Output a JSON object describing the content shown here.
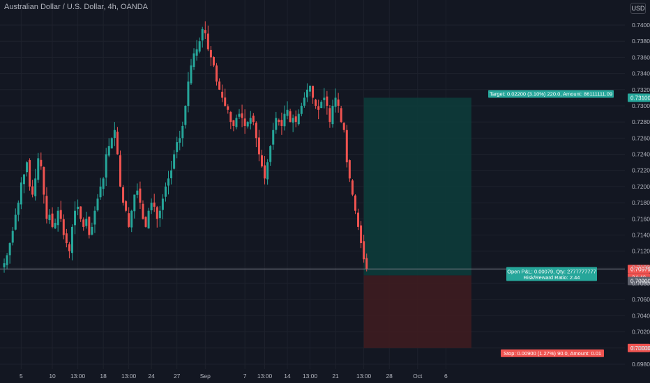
{
  "header": {
    "title": "Australian Dollar / U.S. Dollar, 4h, OANDA",
    "currency": "USD"
  },
  "colors": {
    "background": "#131722",
    "up": "#26a69a",
    "down": "#ef5350",
    "grid": "#1e222d",
    "axis_text": "#b2b5be",
    "target_zone": "#0d3b3a",
    "stop_zone": "#3e1c20"
  },
  "chart_data": {
    "type": "candlestick",
    "title": "Australian Dollar / U.S. Dollar, 4h, OANDA",
    "ylim": [
      0.697,
      0.742
    ],
    "y_ticks": [
      "0.74000",
      "0.73800",
      "0.73600",
      "0.73400",
      "0.73200",
      "0.73000",
      "0.72800",
      "0.72600",
      "0.72400",
      "0.72200",
      "0.72000",
      "0.71800",
      "0.71600",
      "0.71400",
      "0.71200",
      "0.71000",
      "0.70800",
      "0.70600",
      "0.70400",
      "0.70200",
      "0.70000",
      "0.69800"
    ],
    "y_tick_values": [
      0.74,
      0.738,
      0.736,
      0.734,
      0.732,
      0.73,
      0.728,
      0.726,
      0.724,
      0.722,
      0.72,
      0.718,
      0.716,
      0.714,
      0.712,
      0.71,
      0.708,
      0.706,
      0.704,
      0.702,
      0.7,
      0.698
    ],
    "x_ticks": [
      "5",
      "10",
      "13:00",
      "18",
      "13:00",
      "24",
      "27",
      "Sep",
      "7",
      "13:00",
      "14",
      "13:00",
      "21",
      "13:00",
      "28",
      "Oct",
      "6"
    ],
    "x_tick_bar_index": [
      6,
      17,
      26,
      35,
      44,
      52,
      61,
      71,
      85,
      92,
      100,
      108,
      117,
      127,
      136,
      146,
      156
    ],
    "total_bars": 170,
    "current_price": "0.70979",
    "countdown": "34:40",
    "position": {
      "type": "long",
      "entry_bar": 127,
      "end_bar": 165,
      "target_price": 0.731,
      "entry_price": 0.709,
      "stop_price": 0.7,
      "target_label": "0.73100",
      "entry_label": "0.70900",
      "stop_label": "0.70000",
      "target_text": "Target: 0.02200 (3.10%) 220.0, Amount: 86111111.09",
      "info_line1": "Open P&L: 0.00079, Qty: 2777777777",
      "info_line2": "Risk/Reward Ratio: 2.44",
      "stop_text": "Stop: 0.00900 (1.27%) 90.0, Amount: 0.01"
    },
    "closes": [
      0.7105,
      0.7115,
      0.713,
      0.7145,
      0.7165,
      0.718,
      0.7205,
      0.7215,
      0.723,
      0.72,
      0.719,
      0.721,
      0.7235,
      0.7225,
      0.719,
      0.716,
      0.7165,
      0.715,
      0.7155,
      0.717,
      0.716,
      0.714,
      0.713,
      0.712,
      0.715,
      0.717,
      0.7175,
      0.716,
      0.715,
      0.716,
      0.714,
      0.715,
      0.717,
      0.7185,
      0.72,
      0.721,
      0.724,
      0.725,
      0.726,
      0.727,
      0.724,
      0.72,
      0.718,
      0.717,
      0.715,
      0.717,
      0.719,
      0.7195,
      0.718,
      0.716,
      0.715,
      0.717,
      0.718,
      0.7175,
      0.716,
      0.717,
      0.7185,
      0.72,
      0.721,
      0.722,
      0.724,
      0.7255,
      0.726,
      0.7275,
      0.73,
      0.733,
      0.735,
      0.7365,
      0.737,
      0.738,
      0.7395,
      0.739,
      0.737,
      0.736,
      0.735,
      0.733,
      0.732,
      0.731,
      0.73,
      0.7295,
      0.728,
      0.7275,
      0.7285,
      0.729,
      0.7285,
      0.7275,
      0.728,
      0.7285,
      0.728,
      0.726,
      0.724,
      0.7225,
      0.721,
      0.723,
      0.725,
      0.727,
      0.7285,
      0.728,
      0.7275,
      0.729,
      0.7295,
      0.728,
      0.7285,
      0.728,
      0.729,
      0.73,
      0.731,
      0.732,
      0.7325,
      0.731,
      0.73,
      0.7295,
      0.7305,
      0.731,
      0.73,
      0.728,
      0.73,
      0.731,
      0.73,
      0.728,
      0.727,
      0.723,
      0.721,
      0.719,
      0.717,
      0.715,
      0.713,
      0.711,
      0.7098
    ]
  }
}
